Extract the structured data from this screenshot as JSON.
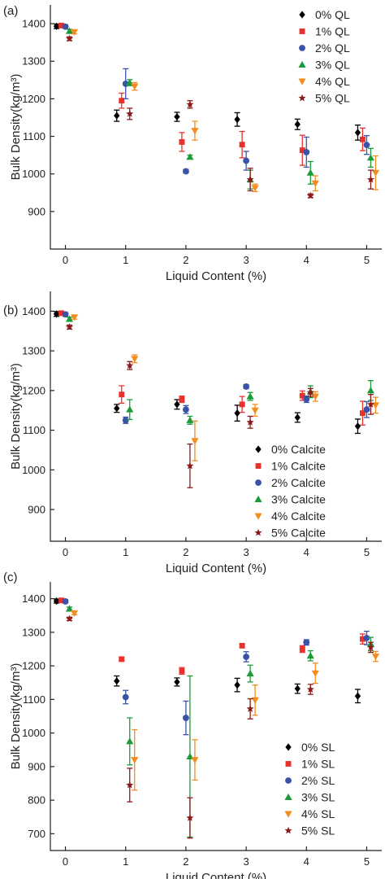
{
  "chart_data": [
    {
      "type": "scatter",
      "panel_label": "(a)",
      "xlabel": "Liquid Content (%)",
      "ylabel": "Bulk Density(kg/m³)",
      "xlim": [
        -0.25,
        5.25
      ],
      "ylim": [
        800,
        1450
      ],
      "x_ticks": [
        0,
        1,
        2,
        3,
        4,
        5
      ],
      "y_ticks": [
        900,
        1000,
        1100,
        1200,
        1300,
        1400
      ],
      "legend_position": "top-right",
      "x": [
        0,
        1,
        2,
        3,
        4,
        5
      ],
      "series": [
        {
          "name": "0% QL",
          "marker": "diamond",
          "color": "#000000",
          "values": [
            1393,
            1155,
            1152,
            1145,
            1132,
            1110
          ],
          "errors": [
            6,
            15,
            12,
            18,
            14,
            20
          ]
        },
        {
          "name": "1% QL",
          "marker": "square",
          "color": "#e8312b",
          "values": [
            1395,
            1195,
            1085,
            1078,
            1063,
            1092
          ],
          "errors": [
            5,
            20,
            25,
            35,
            40,
            30
          ]
        },
        {
          "name": "2% QL",
          "marker": "circle",
          "color": "#3a52a8",
          "values": [
            1392,
            1240,
            1007,
            1035,
            1058,
            1077
          ],
          "errors": [
            5,
            40,
            5,
            25,
            40,
            25
          ]
        },
        {
          "name": "3% QL",
          "marker": "triangle-up",
          "color": "#1b9a3a",
          "values": [
            1380,
            1243,
            1045,
            985,
            1003,
            1043
          ],
          "errors": [
            5,
            8,
            5,
            25,
            30,
            25
          ]
        },
        {
          "name": "4% QL",
          "marker": "triangle-down",
          "color": "#f28c1e",
          "values": [
            1378,
            1233,
            1115,
            963,
            975,
            1003
          ],
          "errors": [
            5,
            10,
            25,
            10,
            20,
            45
          ]
        },
        {
          "name": "5% QL",
          "marker": "star",
          "color": "#8b1a1a",
          "values": [
            1360,
            1160,
            1185,
            985,
            942,
            985
          ],
          "errors": [
            5,
            15,
            10,
            30,
            5,
            25
          ]
        }
      ]
    },
    {
      "type": "scatter",
      "panel_label": "(b)",
      "xlabel": "Liquid Content (%)",
      "ylabel": "Bulk Density(kg/m³)",
      "xlim": [
        -0.25,
        5.25
      ],
      "ylim": [
        820,
        1450
      ],
      "x_ticks": [
        0,
        1,
        2,
        3,
        4,
        5
      ],
      "y_ticks": [
        900,
        1000,
        1100,
        1200,
        1300,
        1400
      ],
      "legend_position": "bottom-right",
      "x": [
        0,
        1,
        2,
        3,
        4,
        5
      ],
      "series": [
        {
          "name": "0% Calcite",
          "marker": "diamond",
          "color": "#000000",
          "values": [
            1393,
            1155,
            1165,
            1143,
            1132,
            1110
          ],
          "errors": [
            6,
            10,
            12,
            20,
            12,
            18
          ]
        },
        {
          "name": "1% Calcite",
          "marker": "square",
          "color": "#e8312b",
          "values": [
            1395,
            1190,
            1178,
            1165,
            1187,
            1143
          ],
          "errors": [
            5,
            22,
            8,
            20,
            12,
            30
          ]
        },
        {
          "name": "2% Calcite",
          "marker": "circle",
          "color": "#3a52a8",
          "values": [
            1392,
            1125,
            1152,
            1210,
            1178,
            1152
          ],
          "errors": [
            5,
            8,
            10,
            5,
            8,
            20
          ]
        },
        {
          "name": "3% Calcite",
          "marker": "triangle-up",
          "color": "#1b9a3a",
          "values": [
            1380,
            1152,
            1125,
            1185,
            1197,
            1200
          ],
          "errors": [
            5,
            25,
            10,
            10,
            15,
            25
          ]
        },
        {
          "name": "4% Calcite",
          "marker": "triangle-down",
          "color": "#f28c1e",
          "values": [
            1385,
            1280,
            1073,
            1150,
            1185,
            1163
          ],
          "errors": [
            5,
            10,
            50,
            15,
            12,
            20
          ]
        },
        {
          "name": "5% Calcite",
          "marker": "star",
          "color": "#8b1a1a",
          "values": [
            1360,
            1263,
            1010,
            1120,
            1195,
            1165
          ],
          "errors": [
            5,
            10,
            55,
            15,
            10,
            25
          ]
        }
      ]
    },
    {
      "type": "scatter",
      "panel_label": "(c)",
      "xlabel": "Liquid Content (%)",
      "ylabel": "Bulk Density(kg/m³)",
      "xlim": [
        -0.25,
        5.25
      ],
      "ylim": [
        650,
        1450
      ],
      "x_ticks": [
        0,
        1,
        2,
        3,
        4,
        5
      ],
      "y_ticks": [
        700,
        800,
        900,
        1000,
        1100,
        1200,
        1300,
        1400
      ],
      "legend_position": "bottom-right",
      "x": [
        0,
        1,
        2,
        3,
        4,
        5
      ],
      "series": [
        {
          "name": "0% SL",
          "marker": "diamond",
          "color": "#000000",
          "values": [
            1393,
            1155,
            1152,
            1143,
            1132,
            1110
          ],
          "errors": [
            6,
            15,
            12,
            20,
            14,
            20
          ]
        },
        {
          "name": "1% SL",
          "marker": "square",
          "color": "#e8312b",
          "values": [
            1395,
            1220,
            1185,
            1260,
            1250,
            1280
          ],
          "errors": [
            5,
            5,
            10,
            5,
            10,
            15
          ]
        },
        {
          "name": "2% SL",
          "marker": "circle",
          "color": "#3a52a8",
          "values": [
            1392,
            1107,
            1045,
            1227,
            1270,
            1283
          ],
          "errors": [
            5,
            20,
            50,
            15,
            8,
            20
          ]
        },
        {
          "name": "3% SL",
          "marker": "triangle-up",
          "color": "#1b9a3a",
          "values": [
            1370,
            975,
            930,
            1177,
            1230,
            1265
          ],
          "errors": [
            5,
            70,
            240,
            25,
            15,
            20
          ]
        },
        {
          "name": "4% SL",
          "marker": "triangle-down",
          "color": "#f28c1e",
          "values": [
            1357,
            920,
            920,
            1098,
            1178,
            1228
          ],
          "errors": [
            5,
            90,
            60,
            45,
            30,
            15
          ]
        },
        {
          "name": "5% SL",
          "marker": "star",
          "color": "#8b1a1a",
          "values": [
            1340,
            845,
            747,
            1072,
            1130,
            1255
          ],
          "errors": [
            5,
            50,
            60,
            30,
            15,
            15
          ]
        }
      ]
    }
  ]
}
